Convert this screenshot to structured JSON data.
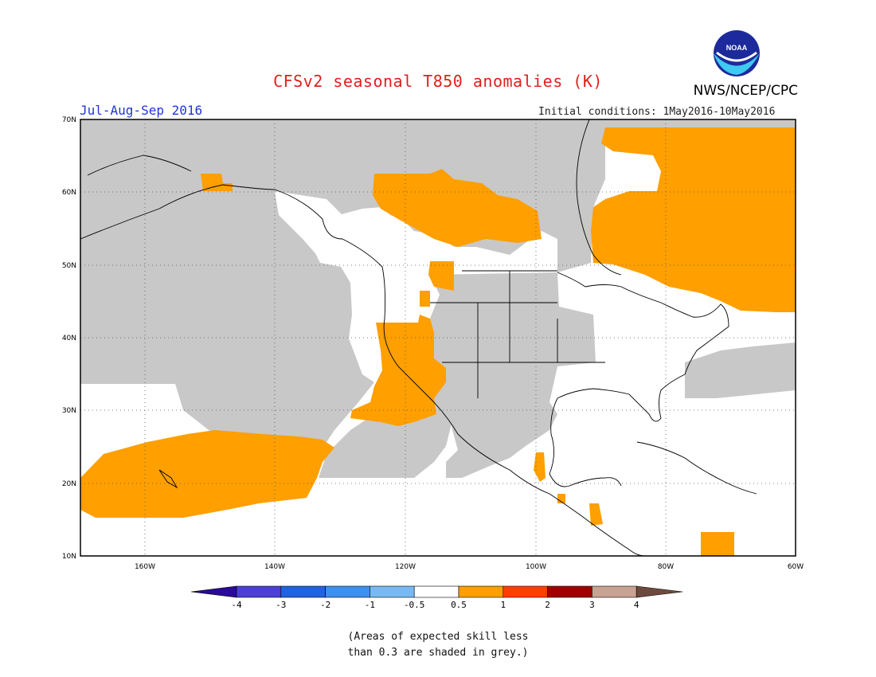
{
  "header": {
    "title": "CFSv2 seasonal T850 anomalies (K)",
    "agency": "NWS/NCEP/CPC",
    "logo_text": "NOAA",
    "season": "Jul-Aug-Sep 2016",
    "initial_conditions": "Initial conditions: 1May2016-10May2016"
  },
  "map": {
    "projection": "cylindrical",
    "lon_range": [
      -170,
      -60
    ],
    "lat_range": [
      10,
      70
    ],
    "lat_labels": [
      "70N",
      "60N",
      "50N",
      "40N",
      "30N",
      "20N",
      "10N"
    ],
    "lon_labels": [
      "160W",
      "140W",
      "120W",
      "100W",
      "80W",
      "60W"
    ],
    "colors": {
      "skill_grey": "#c8c8c8",
      "anom_05_1": "#ff9f00",
      "coast": "#000000"
    }
  },
  "legend": {
    "tick_labels": [
      "-4",
      "-3",
      "-2",
      "-1",
      "-0.5",
      "0.5",
      "1",
      "2",
      "3",
      "4"
    ],
    "colors": [
      "#2a0a9a",
      "#4b3fd6",
      "#1f63e0",
      "#3c90f0",
      "#78b9f3",
      "#ffffff",
      "#ff9f00",
      "#ff3f00",
      "#a00000",
      "#c8a292",
      "#6e4a3e"
    ]
  },
  "footnote": {
    "line1": "(Areas of expected skill less",
    "line2": "than 0.3 are shaded in grey.)"
  }
}
